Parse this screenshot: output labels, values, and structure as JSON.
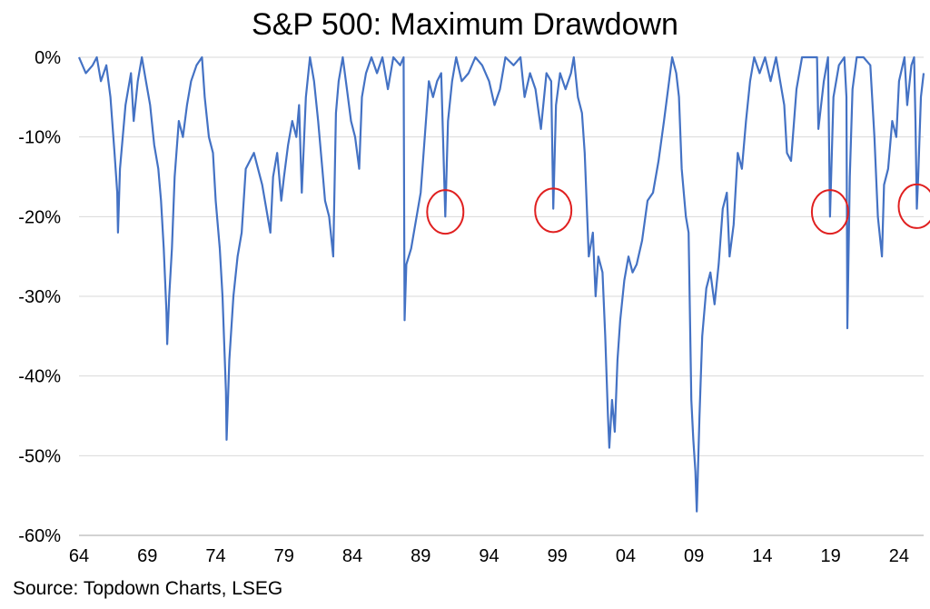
{
  "chart_data": {
    "type": "line",
    "title": "S&P 500: Maximum Drawdown",
    "source": "Source: Topdown Charts, LSEG",
    "xlabel": "",
    "ylabel": "",
    "x_ticks": [
      "64",
      "69",
      "74",
      "79",
      "84",
      "89",
      "94",
      "99",
      "04",
      "09",
      "14",
      "19",
      "24"
    ],
    "y_ticks": [
      "0%",
      "-10%",
      "-20%",
      "-30%",
      "-40%",
      "-50%",
      "-60%"
    ],
    "ylim": [
      -60,
      0
    ],
    "xlim": [
      1964.0,
      2025.8
    ],
    "grid": "horizontal",
    "line_color": "#4472C4",
    "highlight_color": "#E02020",
    "series": [
      {
        "points": [
          [
            1964.0,
            0
          ],
          [
            1964.5,
            -2
          ],
          [
            1965.0,
            -1
          ],
          [
            1965.3,
            0
          ],
          [
            1965.6,
            -3
          ],
          [
            1966.0,
            -1
          ],
          [
            1966.3,
            -5
          ],
          [
            1966.6,
            -12
          ],
          [
            1966.8,
            -17
          ],
          [
            1966.85,
            -22
          ],
          [
            1967.0,
            -14
          ],
          [
            1967.4,
            -6
          ],
          [
            1967.8,
            -2
          ],
          [
            1968.0,
            -8
          ],
          [
            1968.3,
            -3
          ],
          [
            1968.6,
            0
          ],
          [
            1968.9,
            -3
          ],
          [
            1969.2,
            -6
          ],
          [
            1969.5,
            -11
          ],
          [
            1969.8,
            -14
          ],
          [
            1970.0,
            -18
          ],
          [
            1970.2,
            -24
          ],
          [
            1970.4,
            -32
          ],
          [
            1970.45,
            -36
          ],
          [
            1970.6,
            -30
          ],
          [
            1970.8,
            -24
          ],
          [
            1971.0,
            -15
          ],
          [
            1971.3,
            -8
          ],
          [
            1971.6,
            -10
          ],
          [
            1971.9,
            -6
          ],
          [
            1972.2,
            -3
          ],
          [
            1972.6,
            -1
          ],
          [
            1973.0,
            0
          ],
          [
            1973.2,
            -5
          ],
          [
            1973.5,
            -10
          ],
          [
            1973.8,
            -12
          ],
          [
            1974.0,
            -18
          ],
          [
            1974.3,
            -24
          ],
          [
            1974.5,
            -30
          ],
          [
            1974.75,
            -42
          ],
          [
            1974.8,
            -48
          ],
          [
            1975.0,
            -38
          ],
          [
            1975.3,
            -30
          ],
          [
            1975.6,
            -25
          ],
          [
            1975.9,
            -22
          ],
          [
            1976.2,
            -14
          ],
          [
            1976.5,
            -13
          ],
          [
            1976.8,
            -12
          ],
          [
            1977.1,
            -14
          ],
          [
            1977.4,
            -16
          ],
          [
            1977.7,
            -19
          ],
          [
            1978.0,
            -22
          ],
          [
            1978.2,
            -15
          ],
          [
            1978.5,
            -12
          ],
          [
            1978.8,
            -18
          ],
          [
            1979.0,
            -15
          ],
          [
            1979.3,
            -11
          ],
          [
            1979.6,
            -8
          ],
          [
            1979.9,
            -10
          ],
          [
            1980.1,
            -6
          ],
          [
            1980.3,
            -17
          ],
          [
            1980.6,
            -5
          ],
          [
            1980.9,
            0
          ],
          [
            1981.2,
            -3
          ],
          [
            1981.5,
            -8
          ],
          [
            1981.8,
            -14
          ],
          [
            1982.0,
            -18
          ],
          [
            1982.3,
            -20
          ],
          [
            1982.6,
            -25
          ],
          [
            1982.8,
            -7
          ],
          [
            1983.0,
            -3
          ],
          [
            1983.3,
            0
          ],
          [
            1983.6,
            -4
          ],
          [
            1983.9,
            -8
          ],
          [
            1984.2,
            -10
          ],
          [
            1984.5,
            -14
          ],
          [
            1984.7,
            -5
          ],
          [
            1985.0,
            -2
          ],
          [
            1985.4,
            0
          ],
          [
            1985.8,
            -2
          ],
          [
            1986.2,
            0
          ],
          [
            1986.6,
            -4
          ],
          [
            1987.0,
            0
          ],
          [
            1987.5,
            -1
          ],
          [
            1987.75,
            0
          ],
          [
            1987.8,
            -25
          ],
          [
            1987.82,
            -33
          ],
          [
            1987.95,
            -26
          ],
          [
            1988.3,
            -24
          ],
          [
            1988.7,
            -20
          ],
          [
            1989.0,
            -17
          ],
          [
            1989.3,
            -10
          ],
          [
            1989.6,
            -3
          ],
          [
            1989.9,
            -5
          ],
          [
            1990.2,
            -3
          ],
          [
            1990.5,
            -2
          ],
          [
            1990.7,
            -14
          ],
          [
            1990.8,
            -20
          ],
          [
            1991.0,
            -8
          ],
          [
            1991.3,
            -3
          ],
          [
            1991.6,
            0
          ],
          [
            1992.0,
            -3
          ],
          [
            1992.5,
            -2
          ],
          [
            1993.0,
            0
          ],
          [
            1993.5,
            -1
          ],
          [
            1994.0,
            -3
          ],
          [
            1994.4,
            -6
          ],
          [
            1994.8,
            -4
          ],
          [
            1995.2,
            0
          ],
          [
            1995.8,
            -1
          ],
          [
            1996.3,
            0
          ],
          [
            1996.6,
            -5
          ],
          [
            1997.0,
            -2
          ],
          [
            1997.4,
            -4
          ],
          [
            1997.8,
            -9
          ],
          [
            1998.2,
            -2
          ],
          [
            1998.55,
            -3
          ],
          [
            1998.7,
            -19
          ],
          [
            1998.9,
            -6
          ],
          [
            1999.2,
            -2
          ],
          [
            1999.6,
            -4
          ],
          [
            2000.0,
            -2
          ],
          [
            2000.2,
            0
          ],
          [
            2000.5,
            -5
          ],
          [
            2000.8,
            -7
          ],
          [
            2001.0,
            -12
          ],
          [
            2001.3,
            -25
          ],
          [
            2001.6,
            -22
          ],
          [
            2001.8,
            -30
          ],
          [
            2002.0,
            -25
          ],
          [
            2002.3,
            -27
          ],
          [
            2002.5,
            -35
          ],
          [
            2002.7,
            -45
          ],
          [
            2002.8,
            -49
          ],
          [
            2003.0,
            -43
          ],
          [
            2003.2,
            -47
          ],
          [
            2003.4,
            -38
          ],
          [
            2003.6,
            -33
          ],
          [
            2003.9,
            -28
          ],
          [
            2004.2,
            -25
          ],
          [
            2004.5,
            -27
          ],
          [
            2004.8,
            -26
          ],
          [
            2005.2,
            -23
          ],
          [
            2005.6,
            -18
          ],
          [
            2006.0,
            -17
          ],
          [
            2006.4,
            -13
          ],
          [
            2006.8,
            -8
          ],
          [
            2007.1,
            -4
          ],
          [
            2007.4,
            0
          ],
          [
            2007.7,
            -2
          ],
          [
            2007.9,
            -5
          ],
          [
            2008.1,
            -14
          ],
          [
            2008.4,
            -20
          ],
          [
            2008.6,
            -22
          ],
          [
            2008.8,
            -43
          ],
          [
            2008.95,
            -48
          ],
          [
            2009.1,
            -52
          ],
          [
            2009.2,
            -57
          ],
          [
            2009.4,
            -45
          ],
          [
            2009.6,
            -35
          ],
          [
            2009.9,
            -29
          ],
          [
            2010.2,
            -27
          ],
          [
            2010.5,
            -31
          ],
          [
            2010.8,
            -26
          ],
          [
            2011.1,
            -19
          ],
          [
            2011.4,
            -17
          ],
          [
            2011.6,
            -25
          ],
          [
            2011.9,
            -21
          ],
          [
            2012.2,
            -12
          ],
          [
            2012.5,
            -14
          ],
          [
            2012.8,
            -8
          ],
          [
            2013.1,
            -3
          ],
          [
            2013.4,
            0
          ],
          [
            2013.8,
            -2
          ],
          [
            2014.2,
            0
          ],
          [
            2014.6,
            -3
          ],
          [
            2015.0,
            0
          ],
          [
            2015.6,
            -6
          ],
          [
            2015.8,
            -12
          ],
          [
            2016.1,
            -13
          ],
          [
            2016.5,
            -4
          ],
          [
            2016.9,
            0
          ],
          [
            2017.5,
            0
          ],
          [
            2018.0,
            0
          ],
          [
            2018.1,
            -9
          ],
          [
            2018.5,
            -3
          ],
          [
            2018.8,
            0
          ],
          [
            2018.95,
            -20
          ],
          [
            2019.2,
            -5
          ],
          [
            2019.6,
            -1
          ],
          [
            2020.0,
            0
          ],
          [
            2020.15,
            -5
          ],
          [
            2020.22,
            -34
          ],
          [
            2020.4,
            -15
          ],
          [
            2020.6,
            -4
          ],
          [
            2020.9,
            0
          ],
          [
            2021.4,
            0
          ],
          [
            2021.9,
            -1
          ],
          [
            2022.2,
            -10
          ],
          [
            2022.45,
            -20
          ],
          [
            2022.75,
            -25
          ],
          [
            2022.9,
            -16
          ],
          [
            2023.2,
            -14
          ],
          [
            2023.5,
            -8
          ],
          [
            2023.8,
            -10
          ],
          [
            2024.0,
            -3
          ],
          [
            2024.4,
            0
          ],
          [
            2024.6,
            -6
          ],
          [
            2024.9,
            -1
          ],
          [
            2025.1,
            0
          ],
          [
            2025.2,
            -8
          ],
          [
            2025.3,
            -19
          ],
          [
            2025.4,
            -15
          ],
          [
            2025.6,
            -5
          ],
          [
            2025.8,
            -2
          ]
        ]
      }
    ],
    "highlights": [
      {
        "x": 1990.8,
        "y": -19.4
      },
      {
        "x": 1998.7,
        "y": -19.2
      },
      {
        "x": 2018.95,
        "y": -19.4
      },
      {
        "x": 2025.3,
        "y": -18.7
      }
    ]
  }
}
